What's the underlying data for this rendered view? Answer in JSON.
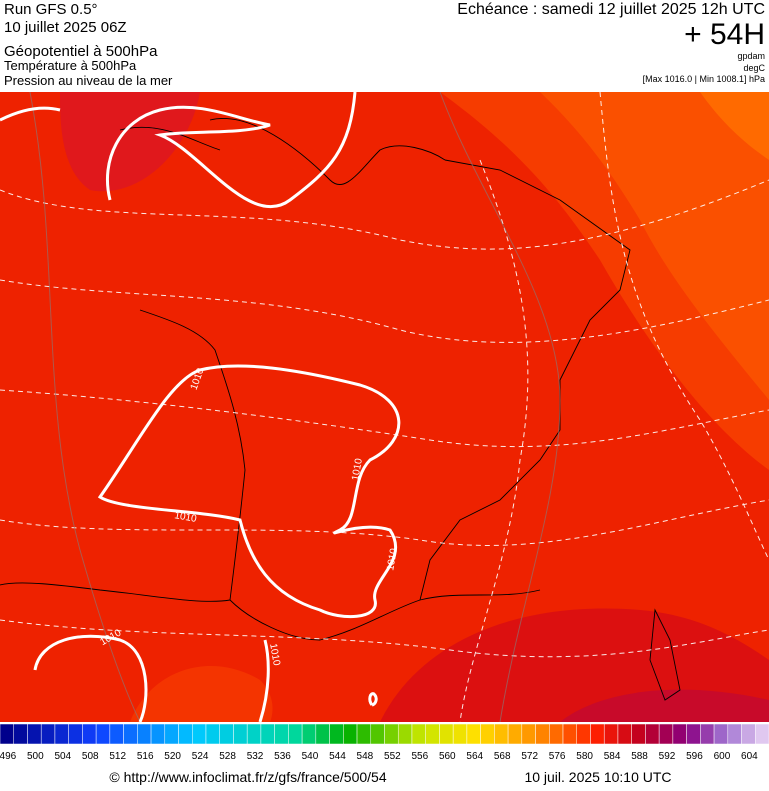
{
  "header": {
    "left": [
      "Run GFS 0.5°",
      "10 juillet 2025 06Z",
      "Géopotentiel à 500hPa",
      "Température à 500hPa",
      "Pression au niveau de la mer"
    ],
    "echeance": "Echéance : samedi 12 juillet 2025 12h UTC",
    "lead": "+ 54H",
    "units": [
      "gpdam",
      "degC"
    ],
    "range": "[Max 1016.0 | Min 1008.1] hPa"
  },
  "map": {
    "contour_labels": [
      "1010",
      "1010",
      "1010",
      "1010",
      "1010",
      "1010"
    ]
  },
  "scale": {
    "labels": [
      496,
      500,
      504,
      508,
      512,
      516,
      520,
      524,
      528,
      532,
      536,
      540,
      544,
      548,
      552,
      556,
      560,
      564,
      568,
      572,
      576,
      580,
      584,
      588,
      592,
      596,
      600,
      604
    ]
  },
  "footer": {
    "source": "© http://www.infoclimat.fr/z/gfs/france/500/54",
    "date": "10 juil. 2025 10:10 UTC"
  }
}
